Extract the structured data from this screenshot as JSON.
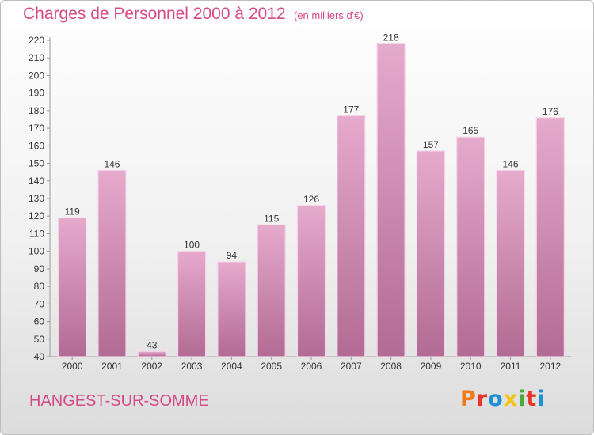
{
  "header": {
    "title": "Charges de Personnel 2000 à 2012",
    "unit": "(en milliers d'€)"
  },
  "footer": {
    "commune": "HANGEST-SUR-SOMME",
    "logo": "Proxiti",
    "logo_colors": [
      "#f07a1a",
      "#e8352b",
      "#1f8fd6",
      "#f2c40f",
      "#4aa93d",
      "#e8352b",
      "#1f8fd6"
    ]
  },
  "colors": {
    "accent": "#d54a86",
    "bar_top": "#e6aacd",
    "bar_bottom": "#b26b94"
  },
  "chart_data": {
    "type": "bar",
    "title": "Charges de Personnel 2000 à 2012",
    "subtitle": "(en milliers d'€)",
    "categories": [
      "2000",
      "2001",
      "2002",
      "2003",
      "2004",
      "2005",
      "2006",
      "2007",
      "2008",
      "2009",
      "2010",
      "2011",
      "2012"
    ],
    "values": [
      119,
      146,
      43,
      100,
      94,
      115,
      126,
      177,
      218,
      157,
      165,
      146,
      176
    ],
    "value_labels": [
      "119",
      "146",
      "43",
      "100",
      "94",
      "115",
      "126",
      "177",
      "218",
      "157",
      "165",
      "146",
      "176"
    ],
    "ylim": [
      40,
      220
    ],
    "yticks": [
      "40",
      "50",
      "60",
      "70",
      "80",
      "90",
      "100",
      "110",
      "120",
      "130",
      "140",
      "150",
      "160",
      "170",
      "180",
      "190",
      "200",
      "210",
      "220"
    ],
    "grid": false,
    "legend": "none"
  }
}
